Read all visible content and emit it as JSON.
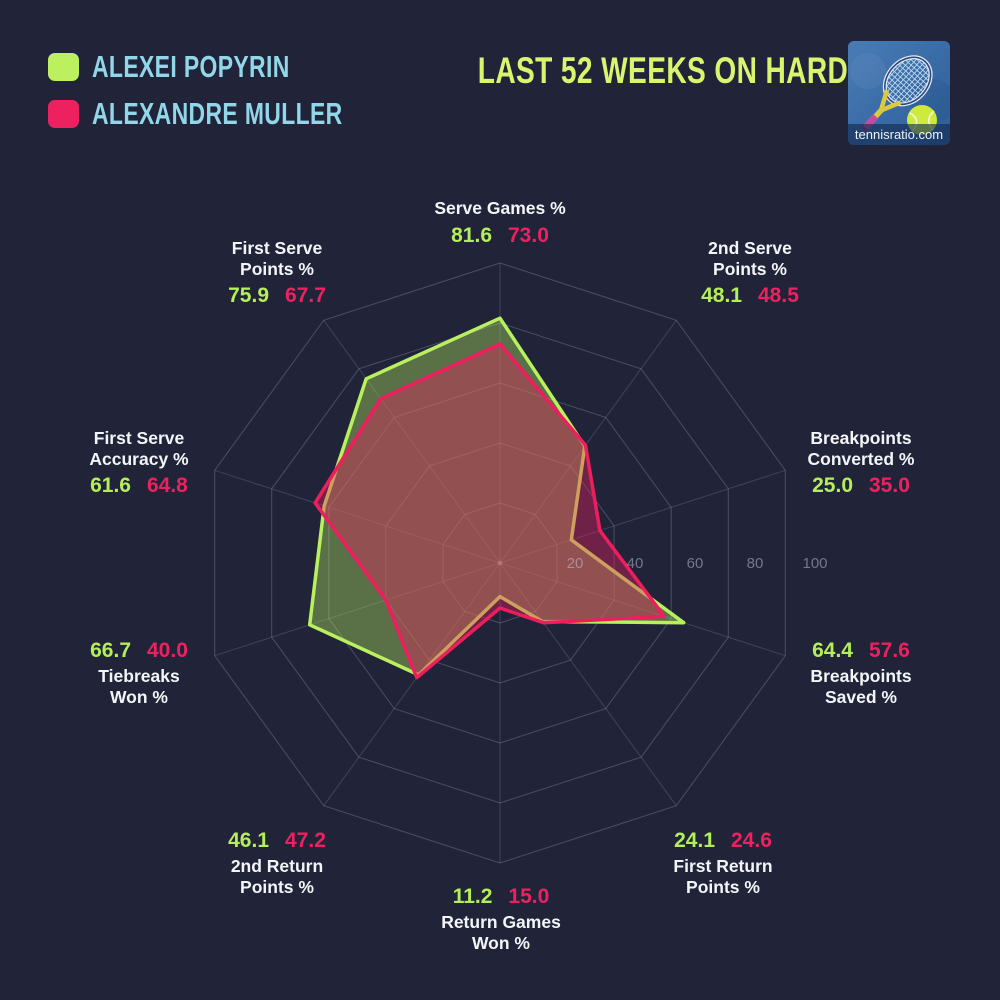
{
  "header": {
    "title": "LAST 52 WEEKS ON HARD",
    "title_color": "#d9f56d"
  },
  "legend": {
    "items": [
      {
        "label": "ALEXEI POPYRIN",
        "color": "#bdf05f"
      },
      {
        "label": "ALEXANDRE MULLER",
        "color": "#ee2160"
      }
    ],
    "text_color": "#92d7e9"
  },
  "logo": {
    "caption": "tennisratio.com"
  },
  "chart_data": {
    "type": "radar",
    "title": "LAST 52 WEEKS ON HARD",
    "categories": [
      "Serve Games %",
      "2nd Serve Points %",
      "Breakpoints Converted %",
      "Breakpoints Saved %",
      "First Return Points %",
      "Return Games Won %",
      "2nd Return Points %",
      "Tiebreaks Won %",
      "First Serve Accuracy %",
      "First Serve Points %"
    ],
    "category_lines": [
      [
        "Serve Games %"
      ],
      [
        "2nd Serve",
        "Points %"
      ],
      [
        "Breakpoints",
        "Converted %"
      ],
      [
        "Breakpoints",
        "Saved %"
      ],
      [
        "First Return",
        "Points %"
      ],
      [
        "Return Games",
        "Won %"
      ],
      [
        "2nd Return",
        "Points %"
      ],
      [
        "Tiebreaks",
        "Won %"
      ],
      [
        "First Serve",
        "Accuracy %"
      ],
      [
        "First Serve",
        "Points %"
      ]
    ],
    "series": [
      {
        "name": "Alexei Popyrin",
        "color": "#b8f05e",
        "fill_opacity": 0.38,
        "values": [
          81.6,
          48.1,
          25.0,
          64.4,
          24.1,
          11.2,
          46.1,
          66.7,
          61.6,
          75.9
        ]
      },
      {
        "name": "Alexandre Muller",
        "color": "#ee1e5e",
        "fill_opacity": 0.38,
        "values": [
          73.0,
          48.5,
          35.0,
          57.6,
          24.6,
          15.0,
          47.2,
          40.0,
          64.8,
          67.7
        ]
      }
    ],
    "ticks": [
      20,
      40,
      60,
      80,
      100
    ],
    "rlim": [
      0,
      100
    ],
    "grid": true,
    "legend_position": "top-left"
  },
  "colors": {
    "background": "#212439",
    "grid": "rgba(168,174,200,0.30)",
    "spoke": "rgba(168,174,200,0.22)",
    "tick_text": "rgba(197,202,222,0.50)",
    "label_text": "#f4f5f8",
    "value_green": "#b4ee59",
    "value_pink": "#ee2160"
  }
}
